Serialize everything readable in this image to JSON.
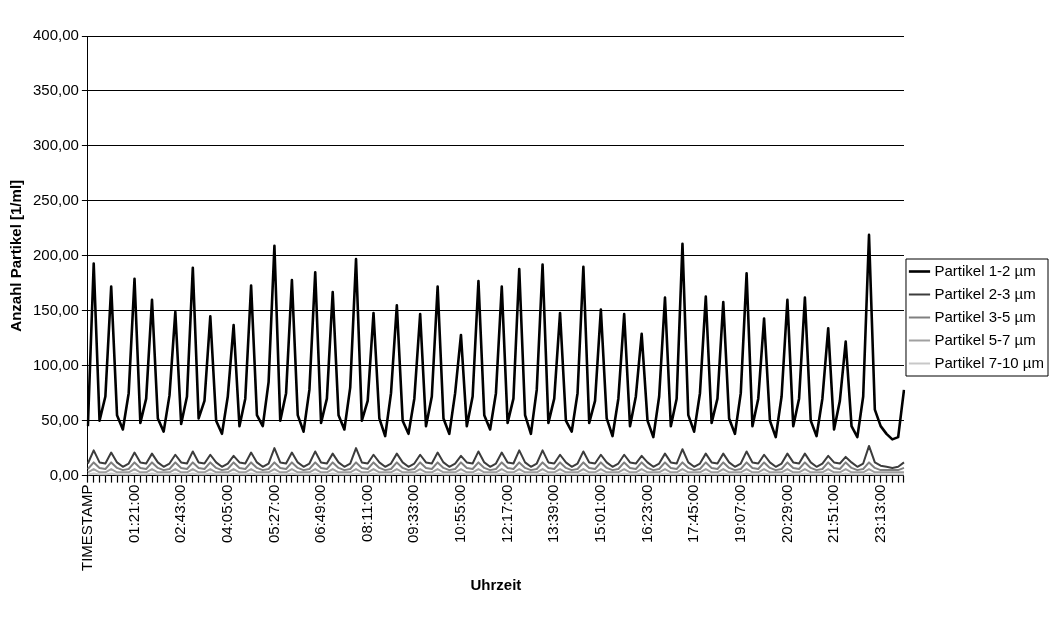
{
  "chart_data": {
    "type": "line",
    "xlabel": "Uhrzeit",
    "ylabel": "Anzahl Partikel [1/ml]",
    "categories": [
      "TIMESTAMP",
      null,
      null,
      null,
      null,
      null,
      null,
      null,
      "01:21:00",
      null,
      null,
      null,
      null,
      null,
      null,
      null,
      "02:43:00",
      null,
      null,
      null,
      null,
      null,
      null,
      null,
      "04:05:00",
      null,
      null,
      null,
      null,
      null,
      null,
      null,
      "05:27:00",
      null,
      null,
      null,
      null,
      null,
      null,
      null,
      "06:49:00",
      null,
      null,
      null,
      null,
      null,
      null,
      null,
      "08:11:00",
      null,
      null,
      null,
      null,
      null,
      null,
      null,
      "09:33:00",
      null,
      null,
      null,
      null,
      null,
      null,
      null,
      "10:55:00",
      null,
      null,
      null,
      null,
      null,
      null,
      null,
      "12:17:00",
      null,
      null,
      null,
      null,
      null,
      null,
      null,
      "13:39:00",
      null,
      null,
      null,
      null,
      null,
      null,
      null,
      "15:01:00",
      null,
      null,
      null,
      null,
      null,
      null,
      null,
      "16:23:00",
      null,
      null,
      null,
      null,
      null,
      null,
      null,
      "17:45:00",
      null,
      null,
      null,
      null,
      null,
      null,
      null,
      "19:07:00",
      null,
      null,
      null,
      null,
      null,
      null,
      null,
      "20:29:00",
      null,
      null,
      null,
      null,
      null,
      null,
      null,
      "21:51:00",
      null,
      null,
      null,
      null,
      null,
      null,
      null,
      "23:13:00",
      null,
      null,
      null,
      null
    ],
    "series": [
      {
        "name": "Partikel 1-2 µm",
        "color": "#000000",
        "values": [
          45,
          193,
          50,
          72,
          172,
          55,
          42,
          75,
          179,
          48,
          70,
          160,
          52,
          40,
          73,
          149,
          47,
          72,
          189,
          52,
          68,
          145,
          50,
          38,
          72,
          137,
          45,
          70,
          173,
          55,
          45,
          85,
          209,
          50,
          75,
          178,
          55,
          40,
          78,
          185,
          48,
          70,
          167,
          55,
          42,
          80,
          197,
          50,
          68,
          148,
          52,
          36,
          75,
          155,
          50,
          38,
          70,
          147,
          45,
          72,
          172,
          52,
          38,
          75,
          128,
          45,
          72,
          177,
          55,
          42,
          75,
          172,
          48,
          70,
          188,
          55,
          38,
          78,
          192,
          48,
          70,
          148,
          50,
          40,
          75,
          190,
          48,
          68,
          151,
          52,
          36,
          70,
          147,
          45,
          72,
          129,
          50,
          35,
          72,
          162,
          45,
          70,
          211,
          55,
          40,
          75,
          163,
          48,
          70,
          158,
          52,
          38,
          75,
          184,
          45,
          70,
          143,
          50,
          35,
          72,
          160,
          45,
          70,
          162,
          50,
          36,
          70,
          134,
          42,
          68,
          122,
          45,
          35,
          72,
          219,
          60,
          45,
          38,
          33,
          35,
          78
        ]
      },
      {
        "name": "Partikel 2-3 µm",
        "color": "#3c3c3c",
        "values": [
          11,
          23,
          12,
          11,
          21,
          12,
          8,
          11,
          21,
          12,
          11,
          20,
          12,
          8,
          11,
          19,
          12,
          11,
          22,
          12,
          11,
          19,
          12,
          8,
          11,
          18,
          12,
          11,
          21,
          12,
          8,
          11,
          25,
          12,
          11,
          21,
          12,
          8,
          11,
          22,
          12,
          11,
          20,
          12,
          8,
          11,
          25,
          12,
          11,
          19,
          12,
          8,
          11,
          20,
          12,
          8,
          11,
          19,
          12,
          11,
          21,
          12,
          8,
          11,
          18,
          12,
          11,
          22,
          12,
          8,
          11,
          21,
          12,
          11,
          23,
          12,
          8,
          11,
          23,
          12,
          11,
          19,
          12,
          8,
          11,
          22,
          12,
          11,
          19,
          12,
          8,
          11,
          19,
          12,
          11,
          18,
          12,
          8,
          11,
          20,
          12,
          11,
          24,
          12,
          8,
          11,
          20,
          12,
          11,
          20,
          12,
          8,
          11,
          22,
          12,
          11,
          19,
          12,
          8,
          11,
          20,
          12,
          11,
          20,
          12,
          8,
          11,
          18,
          12,
          11,
          17,
          12,
          8,
          11,
          27,
          12,
          9,
          8,
          7,
          8,
          12
        ]
      },
      {
        "name": "Partikel 3-5 µm",
        "color": "#808080",
        "values": [
          6,
          12,
          7,
          6,
          12,
          7,
          5,
          6,
          12,
          7,
          6,
          12,
          7,
          5,
          6,
          12,
          7,
          6,
          12,
          7,
          6,
          12,
          7,
          5,
          6,
          12,
          7,
          6,
          12,
          7,
          5,
          6,
          12,
          7,
          6,
          12,
          7,
          5,
          6,
          12,
          7,
          6,
          12,
          7,
          5,
          6,
          12,
          7,
          6,
          12,
          7,
          5,
          6,
          12,
          7,
          5,
          6,
          12,
          7,
          6,
          12,
          7,
          5,
          6,
          12,
          7,
          6,
          12,
          7,
          5,
          6,
          12,
          7,
          6,
          12,
          7,
          5,
          6,
          12,
          7,
          6,
          12,
          7,
          5,
          6,
          12,
          7,
          6,
          12,
          7,
          5,
          6,
          12,
          7,
          6,
          12,
          7,
          5,
          6,
          12,
          7,
          6,
          12,
          7,
          5,
          6,
          12,
          7,
          6,
          12,
          7,
          5,
          6,
          12,
          7,
          6,
          12,
          7,
          5,
          6,
          12,
          7,
          6,
          12,
          7,
          5,
          6,
          12,
          7,
          6,
          12,
          7,
          5,
          6,
          12,
          7,
          5,
          5,
          5,
          5,
          7
        ]
      },
      {
        "name": "Partikel 5-7 µm",
        "color": "#a0a0a0",
        "values": [
          3,
          6,
          3,
          3,
          6,
          3,
          3,
          3,
          6,
          3,
          3,
          6,
          3,
          3,
          3,
          6,
          3,
          3,
          6,
          3,
          3,
          6,
          3,
          3,
          3,
          6,
          3,
          3,
          6,
          3,
          3,
          3,
          6,
          3,
          3,
          6,
          3,
          3,
          3,
          6,
          3,
          3,
          6,
          3,
          3,
          3,
          6,
          3,
          3,
          6,
          3,
          3,
          3,
          6,
          3,
          3,
          3,
          6,
          3,
          3,
          6,
          3,
          3,
          3,
          6,
          3,
          3,
          6,
          3,
          3,
          3,
          6,
          3,
          3,
          6,
          3,
          3,
          3,
          6,
          3,
          3,
          6,
          3,
          3,
          3,
          6,
          3,
          3,
          6,
          3,
          3,
          3,
          6,
          3,
          3,
          6,
          3,
          3,
          3,
          6,
          3,
          3,
          6,
          3,
          3,
          3,
          6,
          3,
          3,
          6,
          3,
          3,
          3,
          6,
          3,
          3,
          6,
          3,
          3,
          3,
          6,
          3,
          3,
          6,
          3,
          3,
          3,
          6,
          3,
          3,
          6,
          3,
          3,
          3,
          6,
          3,
          3,
          3,
          3,
          3,
          3
        ]
      },
      {
        "name": "Partikel 7-10 µm",
        "color": "#c8c8c8",
        "values": [
          1,
          2,
          1,
          1,
          2,
          1,
          1,
          1,
          2,
          1,
          1,
          2,
          1,
          1,
          1,
          2,
          1,
          1,
          2,
          1,
          1,
          2,
          1,
          1,
          1,
          2,
          1,
          1,
          2,
          1,
          1,
          1,
          2,
          1,
          1,
          2,
          1,
          1,
          1,
          2,
          1,
          1,
          2,
          1,
          1,
          1,
          2,
          1,
          1,
          2,
          1,
          1,
          1,
          2,
          1,
          1,
          1,
          2,
          1,
          1,
          2,
          1,
          1,
          1,
          2,
          1,
          1,
          2,
          1,
          1,
          1,
          2,
          1,
          1,
          2,
          1,
          1,
          1,
          2,
          1,
          1,
          2,
          1,
          1,
          1,
          2,
          1,
          1,
          2,
          1,
          1,
          1,
          2,
          1,
          1,
          2,
          1,
          1,
          1,
          2,
          1,
          1,
          2,
          1,
          1,
          1,
          2,
          1,
          1,
          2,
          1,
          1,
          1,
          2,
          1,
          1,
          2,
          1,
          1,
          1,
          2,
          1,
          1,
          2,
          1,
          1,
          1,
          2,
          1,
          1,
          2,
          1,
          1,
          1,
          2,
          1,
          1,
          1,
          1,
          1,
          1
        ]
      }
    ],
    "ylim": [
      0,
      400
    ],
    "yticks": [
      {
        "value": 0,
        "label": "0,00"
      },
      {
        "value": 50,
        "label": "50,00"
      },
      {
        "value": 100,
        "label": "100,00"
      },
      {
        "value": 150,
        "label": "150,00"
      },
      {
        "value": 200,
        "label": "200,00"
      },
      {
        "value": 250,
        "label": "250,00"
      },
      {
        "value": 300,
        "label": "300,00"
      },
      {
        "value": 350,
        "label": "350,00"
      },
      {
        "value": 400,
        "label": "400,00"
      }
    ],
    "grid": "y",
    "legend": "right",
    "marker": "none",
    "line_style": "solid"
  }
}
